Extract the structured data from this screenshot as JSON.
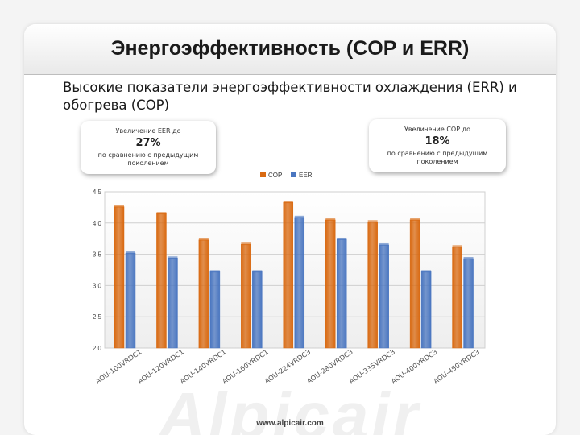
{
  "slide": {
    "title": "Энергоэффективность (COP и ERR)",
    "subtitle": "Высокие показатели энергоэффективности охлаждения (ERR) и обогрева (COP)",
    "footer": "www.alpicair.com",
    "watermark": "Alpicair"
  },
  "callouts": {
    "left": {
      "label": "Увеличение EER до",
      "value": "27%",
      "comparison": "по сравнению с предыдущим поколением"
    },
    "right": {
      "label": "Увеличение COP до",
      "value": "18%",
      "comparison": "по сравнению с предыдущим поколением"
    }
  },
  "colors": {
    "cop": "#d96a12",
    "eer": "#4a76c0",
    "grid": "#cfcfcf"
  },
  "chart_data": {
    "type": "bar",
    "categories": [
      "AOU-100VRDC1",
      "AOU-120VRDC1",
      "AOU-140VRDC1",
      "AOU-160VRDC1",
      "AOU-224VRDC3",
      "AOU-280VRDC3",
      "AOU-335VRDC3",
      "AOU-400VRDC3",
      "AOU-450VRDC3"
    ],
    "series": [
      {
        "name": "COP",
        "values": [
          4.26,
          4.15,
          3.73,
          3.66,
          4.33,
          4.05,
          4.02,
          4.05,
          3.62
        ]
      },
      {
        "name": "EER",
        "values": [
          3.52,
          3.44,
          3.22,
          3.22,
          4.09,
          3.74,
          3.65,
          3.22,
          3.43
        ]
      }
    ],
    "ylim": [
      2.0,
      4.5
    ],
    "yticks": [
      "2.0",
      "2.5",
      "3.0",
      "3.5",
      "4.0",
      "4.5"
    ],
    "legend": "top-center",
    "grid": true
  }
}
